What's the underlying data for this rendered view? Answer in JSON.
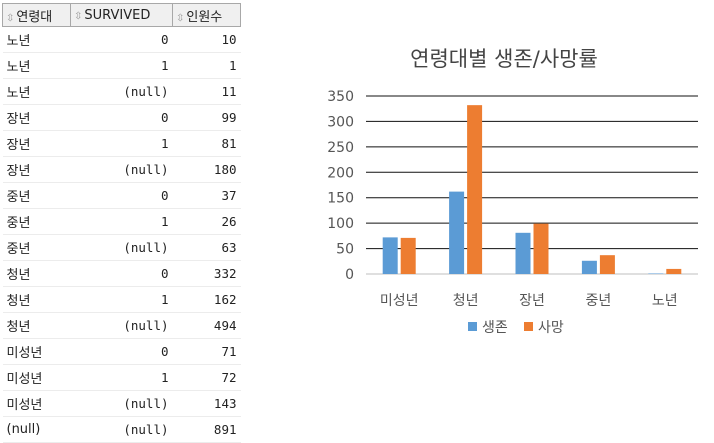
{
  "grid": {
    "headers": [
      "연령대",
      "SURVIVED",
      "인원수"
    ],
    "rows": [
      [
        "노년",
        "0",
        "10"
      ],
      [
        "노년",
        "1",
        "1"
      ],
      [
        "노년",
        "(null)",
        "11"
      ],
      [
        "장년",
        "0",
        "99"
      ],
      [
        "장년",
        "1",
        "81"
      ],
      [
        "장년",
        "(null)",
        "180"
      ],
      [
        "중년",
        "0",
        "37"
      ],
      [
        "중년",
        "1",
        "26"
      ],
      [
        "중년",
        "(null)",
        "63"
      ],
      [
        "청년",
        "0",
        "332"
      ],
      [
        "청년",
        "1",
        "162"
      ],
      [
        "청년",
        "(null)",
        "494"
      ],
      [
        "미성년",
        "0",
        "71"
      ],
      [
        "미성년",
        "1",
        "72"
      ],
      [
        "미성년",
        "(null)",
        "143"
      ],
      [
        "(null)",
        "(null)",
        "891"
      ]
    ]
  },
  "chart_data": {
    "type": "bar",
    "title": "연령대별 생존/사망률",
    "categories": [
      "미성년",
      "청년",
      "장년",
      "중년",
      "노년"
    ],
    "series": [
      {
        "name": "생존",
        "color": "#5b9bd5",
        "values": [
          72,
          162,
          81,
          26,
          1
        ]
      },
      {
        "name": "사망",
        "color": "#ed7d31",
        "values": [
          71,
          332,
          99,
          37,
          10
        ]
      }
    ],
    "ylim": [
      0,
      350
    ],
    "yticks": [
      "0",
      "50",
      "100",
      "150",
      "200",
      "250",
      "300",
      "350"
    ],
    "grid": true,
    "legend": "bottom"
  }
}
